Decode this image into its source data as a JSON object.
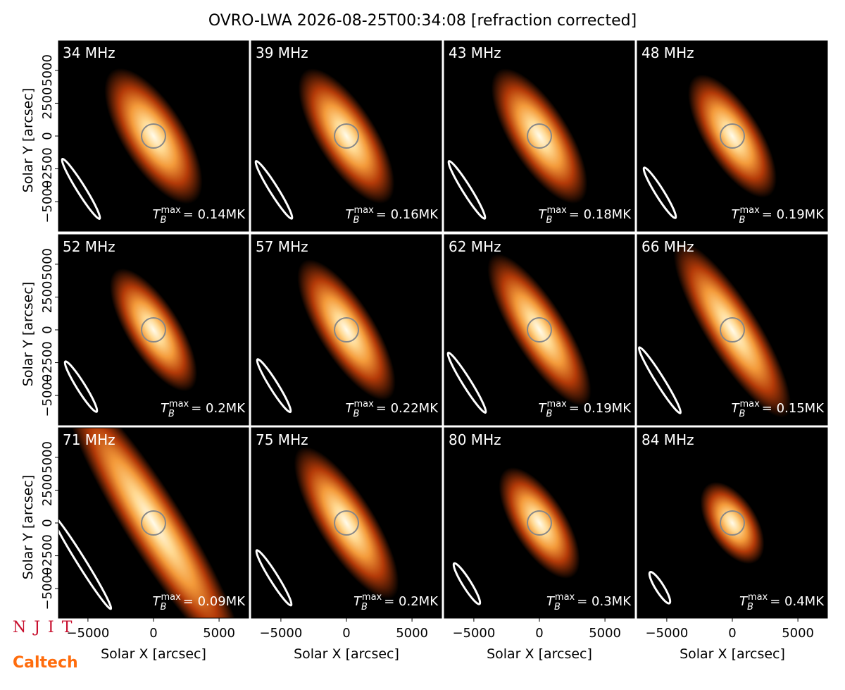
{
  "title": "OVRO-LWA 2026-08-25T00:34:08 [refraction corrected]",
  "axes": {
    "xlabel": "Solar X [arcsec]",
    "ylabel": "Solar Y [arcsec]",
    "xlim": [
      -7250,
      7250
    ],
    "ylim": [
      -7250,
      7250
    ],
    "xticks": [
      {
        "value": -5000,
        "label": "−5000"
      },
      0,
      5000
    ],
    "yticks": [
      {
        "value": -5000,
        "label": "−5000"
      },
      {
        "value": -2500,
        "label": "−2500"
      },
      0,
      2500,
      5000
    ],
    "tb_symbol": "T",
    "tb_sub": "B",
    "tb_sup": "max"
  },
  "chart_data": [
    {
      "type": "image",
      "label": "34 MHz",
      "annotation": "= 0.14MK"
    },
    {
      "type": "image",
      "label": "39 MHz",
      "annotation": "= 0.16MK"
    },
    {
      "type": "image",
      "label": "43 MHz",
      "annotation": "= 0.18MK"
    },
    {
      "type": "image",
      "label": "48 MHz",
      "annotation": "= 0.19MK"
    },
    {
      "type": "image",
      "label": "52 MHz",
      "annotation": "= 0.2MK"
    },
    {
      "type": "image",
      "label": "57 MHz",
      "annotation": "= 0.22MK"
    },
    {
      "type": "image",
      "label": "62 MHz",
      "annotation": "= 0.19MK"
    },
    {
      "type": "image",
      "label": "66 MHz",
      "annotation": "= 0.15MK"
    },
    {
      "type": "image",
      "label": "71 MHz",
      "annotation": "= 0.09MK"
    },
    {
      "type": "image",
      "label": "75 MHz",
      "annotation": "= 0.2MK"
    },
    {
      "type": "image",
      "label": "80 MHz",
      "annotation": "= 0.3MK"
    },
    {
      "type": "image",
      "label": "84 MHz",
      "annotation": "= 0.4MK"
    }
  ],
  "logos": [
    "N J I T",
    "Caltech"
  ]
}
